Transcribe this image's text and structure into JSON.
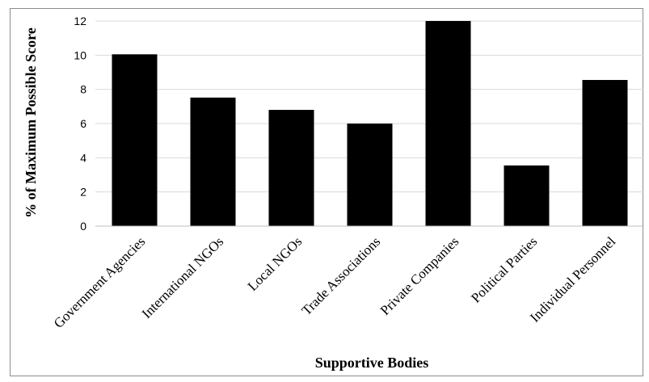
{
  "chart_data": {
    "type": "bar",
    "title": "",
    "xlabel": "Supportive Bodies",
    "ylabel": "% of Maximum Possible Score",
    "categories": [
      "Government Agencies",
      "International NGOs",
      "Local NGOs",
      "Trade Associations",
      "Private Companies",
      "Political Parties",
      "Individual Personnel"
    ],
    "values": [
      10.05,
      7.52,
      6.8,
      6.0,
      12.0,
      3.55,
      8.55
    ],
    "ylim": [
      0,
      12
    ],
    "yticks": [
      0,
      2,
      4,
      6,
      8,
      10,
      12
    ],
    "grid": true,
    "legend": "none",
    "colors": {
      "bar": "#000000",
      "grid": "#d9d9d9",
      "frame": "#8c8c8c"
    }
  }
}
